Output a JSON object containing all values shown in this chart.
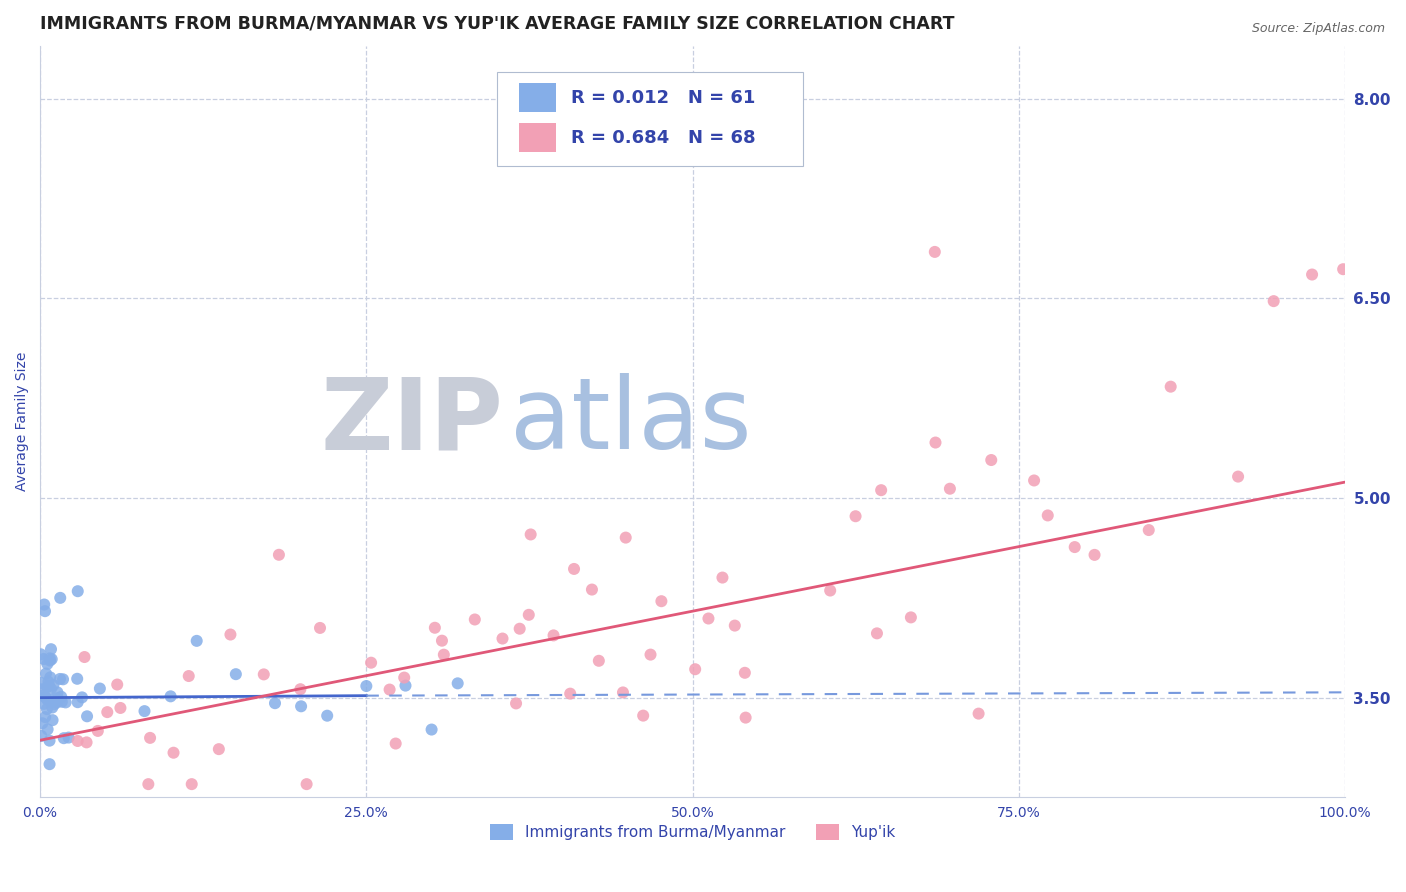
{
  "title": "IMMIGRANTS FROM BURMA/MYANMAR VS YUP'IK AVERAGE FAMILY SIZE CORRELATION CHART",
  "source_text": "Source: ZipAtlas.com",
  "ylabel": "Average Family Size",
  "xlim": [
    0,
    1.0
  ],
  "ylim": [
    2.75,
    8.4
  ],
  "xticks": [
    0.0,
    0.25,
    0.5,
    0.75,
    1.0
  ],
  "xticklabels": [
    "0.0%",
    "25.0%",
    "50.0%",
    "75.0%",
    "100.0%"
  ],
  "ytick_right_vals": [
    3.5,
    5.0,
    6.5,
    8.0
  ],
  "grid_color": "#c8cfe0",
  "background_color": "#ffffff",
  "color_blue": "#85aee8",
  "color_pink": "#f2a0b5",
  "title_color": "#222222",
  "axis_label_color": "#3344aa",
  "tick_color": "#3344aa",
  "legend_text_color": "#3344aa",
  "watermark_color_zip": "#d0d5e0",
  "watermark_color_atlas": "#b8c8e8",
  "title_fontsize": 12.5,
  "axis_label_fontsize": 10,
  "tick_fontsize": 10,
  "legend_fontsize": 13
}
